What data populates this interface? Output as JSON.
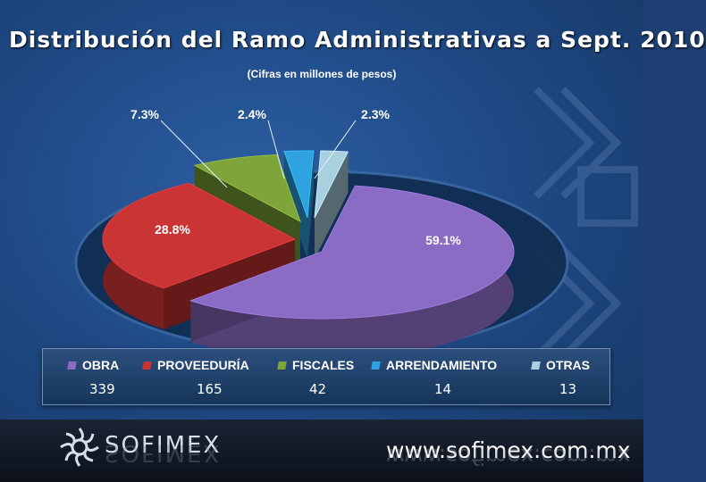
{
  "slide": {
    "title": "Distribución del Ramo Administrativas a Sept. 2010",
    "subtitle": "(Cifras en millones de pesos)"
  },
  "chart_data": {
    "type": "pie",
    "title": "Distribución del Ramo Administrativas a Sept. 2010",
    "subtitle": "(Cifras en millones de pesos)",
    "categories": [
      "OBRA",
      "PROVEEDURÍA",
      "FISCALES",
      "ARRENDAMIENTO",
      "OTRAS"
    ],
    "values": [
      339,
      165,
      42,
      14,
      13
    ],
    "percent_labels": [
      "59.1%",
      "28.8%",
      "7.3%",
      "2.4%",
      "2.3%"
    ],
    "colors": [
      "#8a6cc4",
      "#c93434",
      "#7ea53a",
      "#2ea3e0",
      "#a9d0de"
    ],
    "legend_position": "bottom"
  },
  "legend": {
    "items": [
      {
        "label": "OBRA",
        "value": "339",
        "color": "#8a6cc4"
      },
      {
        "label": "PROVEEDURÍA",
        "value": "165",
        "color": "#c93434"
      },
      {
        "label": "FISCALES",
        "value": "42",
        "color": "#7ea53a"
      },
      {
        "label": "ARRENDAMIENTO",
        "value": "14",
        "color": "#2ea3e0"
      },
      {
        "label": "OTRAS",
        "value": "13",
        "color": "#a9d0de"
      }
    ]
  },
  "footer": {
    "logo_text": "SOFIMEX",
    "url": "www.sofimex.com.mx"
  }
}
